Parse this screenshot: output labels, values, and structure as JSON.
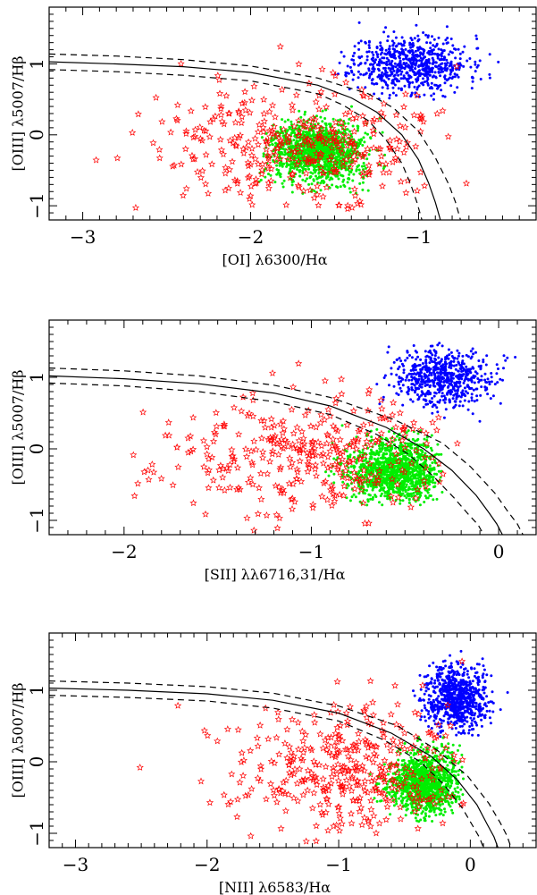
{
  "colors": {
    "axis": "#000000",
    "curve": "#000000",
    "stars": "#ff0000",
    "agn_points": "#0000ff",
    "hii_points": "#00ee00"
  },
  "chart_data": [
    {
      "type": "scatter",
      "xlabel": "[OI] λ6300/Hα",
      "ylabel": "[OIII] λ5007/Hβ",
      "xlim": [
        -3.2,
        -0.3
      ],
      "ylim": [
        -1.2,
        1.8
      ],
      "xticks": [
        -3,
        -2,
        -1
      ],
      "xtick_labels": [
        "−3",
        "−2",
        "−1"
      ],
      "yticks": [
        -1,
        0,
        1
      ],
      "ytick_labels": [
        "−1",
        "0",
        "1"
      ],
      "grid": false,
      "curves": [
        {
          "style": "solid",
          "x": [
            -3.2,
            -2.8,
            -2.4,
            -2.0,
            -1.6,
            -1.4,
            -1.25,
            -1.1,
            -1.0,
            -0.94,
            -0.9,
            -0.87
          ],
          "y": [
            1.03,
            1.0,
            0.96,
            0.88,
            0.7,
            0.52,
            0.32,
            0.0,
            -0.35,
            -0.68,
            -0.95,
            -1.2
          ]
        },
        {
          "style": "dashed",
          "x": [
            -3.2,
            -2.8,
            -2.4,
            -2.0,
            -1.6,
            -1.3,
            -1.15,
            -1.0,
            -0.9,
            -0.82,
            -0.78,
            -0.75
          ],
          "y": [
            1.14,
            1.11,
            1.06,
            0.97,
            0.8,
            0.58,
            0.38,
            0.05,
            -0.32,
            -0.7,
            -0.95,
            -1.2
          ]
        },
        {
          "style": "dashed",
          "x": [
            -3.2,
            -2.8,
            -2.4,
            -2.0,
            -1.6,
            -1.45,
            -1.3,
            -1.2,
            -1.1,
            -1.05,
            -1.01,
            -0.98
          ],
          "y": [
            0.92,
            0.89,
            0.84,
            0.76,
            0.58,
            0.42,
            0.2,
            -0.05,
            -0.4,
            -0.68,
            -0.95,
            -1.2
          ]
        }
      ],
      "series": [
        {
          "marker": "dot",
          "color": "#0000ff",
          "count": 700,
          "center": [
            -1.05,
            1.0
          ],
          "spread": [
            0.17,
            0.2
          ],
          "xrange": [
            -1.5,
            -0.5
          ],
          "yrange": [
            0.45,
            1.6
          ],
          "seed": 11
        },
        {
          "marker": "dot",
          "color": "#00ee00",
          "count": 1300,
          "center": [
            -1.6,
            -0.25
          ],
          "spread": [
            0.14,
            0.22
          ],
          "xrange": [
            -1.95,
            -1.2
          ],
          "yrange": [
            -0.85,
            0.4
          ],
          "seed": 12
        },
        {
          "marker": "star",
          "color": "#ff0000",
          "count": 380,
          "center": [
            -1.7,
            -0.15
          ],
          "spread": [
            0.42,
            0.42
          ],
          "xrange": [
            -3.1,
            -0.7
          ],
          "yrange": [
            -1.15,
            1.65
          ],
          "seed": 13
        }
      ]
    },
    {
      "type": "scatter",
      "xlabel": "[SII] λλ6716,31/Hα",
      "ylabel": "[OIII] λ5007/Hβ",
      "xlim": [
        -2.4,
        0.2
      ],
      "ylim": [
        -1.2,
        1.8
      ],
      "xticks": [
        -2,
        -1,
        0
      ],
      "xtick_labels": [
        "−2",
        "−1",
        "0"
      ],
      "yticks": [
        -1,
        0,
        1
      ],
      "ytick_labels": [
        "−1",
        "0",
        "1"
      ],
      "grid": false,
      "curves": [
        {
          "style": "solid",
          "x": [
            -2.4,
            -2.0,
            -1.6,
            -1.2,
            -0.9,
            -0.6,
            -0.4,
            -0.25,
            -0.12,
            -0.05,
            -0.01,
            0.02
          ],
          "y": [
            1.02,
            0.98,
            0.91,
            0.78,
            0.6,
            0.3,
            0.0,
            -0.3,
            -0.65,
            -0.9,
            -1.05,
            -1.2
          ]
        },
        {
          "style": "dashed",
          "x": [
            -2.4,
            -2.0,
            -1.6,
            -1.2,
            -0.9,
            -0.55,
            -0.3,
            -0.15,
            -0.02,
            0.05,
            0.1,
            0.13
          ],
          "y": [
            1.13,
            1.09,
            1.02,
            0.89,
            0.72,
            0.4,
            0.08,
            -0.25,
            -0.62,
            -0.88,
            -1.05,
            -1.2
          ]
        },
        {
          "style": "dashed",
          "x": [
            -2.4,
            -2.0,
            -1.6,
            -1.2,
            -0.9,
            -0.65,
            -0.48,
            -0.35,
            -0.24,
            -0.16,
            -0.11,
            -0.08
          ],
          "y": [
            0.92,
            0.88,
            0.8,
            0.66,
            0.48,
            0.2,
            -0.08,
            -0.38,
            -0.68,
            -0.92,
            -1.06,
            -1.2
          ]
        }
      ],
      "series": [
        {
          "marker": "dot",
          "color": "#0000ff",
          "count": 650,
          "center": [
            -0.3,
            1.0
          ],
          "spread": [
            0.14,
            0.2
          ],
          "xrange": [
            -0.65,
            0.1
          ],
          "yrange": [
            0.3,
            1.5
          ],
          "seed": 21
        },
        {
          "marker": "dot",
          "color": "#00ee00",
          "count": 1200,
          "center": [
            -0.55,
            -0.3
          ],
          "spread": [
            0.12,
            0.22
          ],
          "xrange": [
            -0.95,
            -0.3
          ],
          "yrange": [
            -0.8,
            0.35
          ],
          "seed": 22
        },
        {
          "marker": "star",
          "color": "#ff0000",
          "count": 350,
          "center": [
            -1.05,
            -0.1
          ],
          "spread": [
            0.4,
            0.42
          ],
          "xrange": [
            -2.0,
            -0.2
          ],
          "yrange": [
            -1.15,
            1.65
          ],
          "seed": 23
        }
      ]
    },
    {
      "type": "scatter",
      "xlabel": "[NII] λ6583/Hα",
      "ylabel": "[OIII] λ5007/Hβ",
      "xlim": [
        -3.2,
        0.5
      ],
      "ylim": [
        -1.2,
        1.8
      ],
      "xticks": [
        -3,
        -2,
        -1,
        0
      ],
      "xtick_labels": [
        "−3",
        "−2",
        "−1",
        "0"
      ],
      "yticks": [
        -1,
        0,
        1
      ],
      "ytick_labels": [
        "−1",
        "0",
        "1"
      ],
      "grid": false,
      "curves": [
        {
          "style": "solid",
          "x": [
            -3.2,
            -2.6,
            -2.0,
            -1.5,
            -1.0,
            -0.6,
            -0.3,
            -0.1,
            0.05,
            0.13,
            0.18,
            0.21
          ],
          "y": [
            1.03,
            1.0,
            0.95,
            0.86,
            0.68,
            0.4,
            0.08,
            -0.25,
            -0.6,
            -0.88,
            -1.05,
            -1.2
          ]
        },
        {
          "style": "dashed",
          "x": [
            -3.2,
            -2.6,
            -2.0,
            -1.5,
            -1.0,
            -0.55,
            -0.25,
            -0.02,
            0.14,
            0.23,
            0.28,
            0.31
          ],
          "y": [
            1.13,
            1.1,
            1.05,
            0.96,
            0.78,
            0.5,
            0.16,
            -0.2,
            -0.58,
            -0.86,
            -1.04,
            -1.2
          ]
        },
        {
          "style": "dashed",
          "x": [
            -3.2,
            -2.6,
            -2.0,
            -1.5,
            -1.0,
            -0.65,
            -0.38,
            -0.2,
            -0.06,
            0.02,
            0.07,
            0.1
          ],
          "y": [
            0.93,
            0.9,
            0.85,
            0.75,
            0.57,
            0.3,
            0.0,
            -0.32,
            -0.65,
            -0.9,
            -1.06,
            -1.2
          ]
        }
      ],
      "series": [
        {
          "marker": "dot",
          "color": "#0000ff",
          "count": 800,
          "center": [
            -0.1,
            0.9
          ],
          "spread": [
            0.12,
            0.22
          ],
          "xrange": [
            -0.45,
            0.4
          ],
          "yrange": [
            0.35,
            1.55
          ],
          "seed": 31
        },
        {
          "marker": "dot",
          "color": "#00ee00",
          "count": 1200,
          "center": [
            -0.35,
            -0.3
          ],
          "spread": [
            0.13,
            0.22
          ],
          "xrange": [
            -0.9,
            -0.05
          ],
          "yrange": [
            -0.85,
            0.4
          ],
          "seed": 32
        },
        {
          "marker": "star",
          "color": "#ff0000",
          "count": 380,
          "center": [
            -0.9,
            -0.1
          ],
          "spread": [
            0.45,
            0.45
          ],
          "xrange": [
            -2.8,
            -0.05
          ],
          "yrange": [
            -1.15,
            1.65
          ],
          "seed": 33
        }
      ]
    }
  ]
}
